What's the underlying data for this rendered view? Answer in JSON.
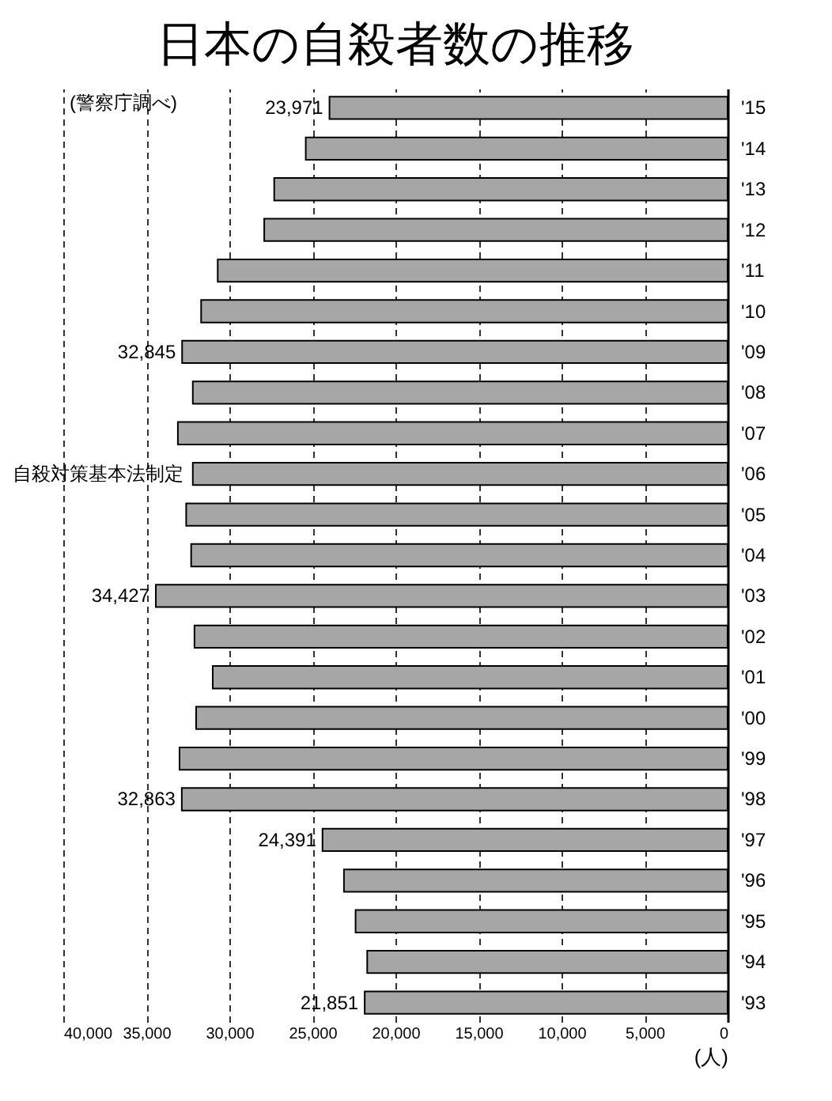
{
  "chart_data": {
    "type": "bar",
    "orientation": "horizontal",
    "title": "日本の自殺者数の推移",
    "xlabel": "(人)",
    "categories": [
      "'15",
      "'14",
      "'13",
      "'12",
      "'11",
      "'10",
      "'09",
      "'08",
      "'07",
      "'06",
      "'05",
      "'04",
      "'03",
      "'02",
      "'01",
      "'00",
      "'99",
      "'98",
      "'97",
      "'96",
      "'95",
      "'94",
      "'93"
    ],
    "values": [
      23971,
      25400,
      27300,
      27900,
      30700,
      31700,
      32845,
      32200,
      33100,
      32200,
      32600,
      32300,
      34427,
      32100,
      31000,
      32000,
      33000,
      32863,
      24391,
      23100,
      22400,
      21700,
      21851
    ],
    "value_labels": [
      "23,971",
      null,
      null,
      null,
      null,
      null,
      "32,845",
      null,
      null,
      null,
      null,
      null,
      "34,427",
      null,
      null,
      null,
      null,
      "32,863",
      "24,391",
      null,
      null,
      null,
      "21,851"
    ],
    "color": "#a6a6a6",
    "xlim": [
      40000,
      0
    ],
    "xticks": [
      {
        "value": 40000,
        "label": "40,000"
      },
      {
        "value": 35000,
        "label": "35,000"
      },
      {
        "value": 30000,
        "label": "30,000"
      },
      {
        "value": 25000,
        "label": "25,000"
      },
      {
        "value": 20000,
        "label": "20,000"
      },
      {
        "value": 15000,
        "label": "15,000"
      },
      {
        "value": 10000,
        "label": "10,000"
      },
      {
        "value": 5000,
        "label": "5,000"
      },
      0
    ],
    "grid": "x",
    "annotations": [
      "(警察庁調べ)",
      {
        "text": "自殺対策基本法制定",
        "x": 32200,
        "y": "'06"
      }
    ]
  }
}
